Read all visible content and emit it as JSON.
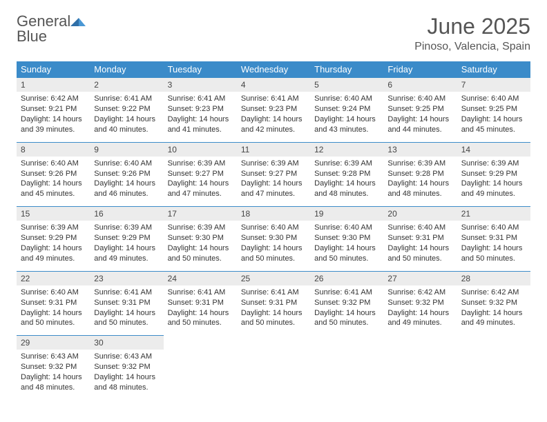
{
  "brand": {
    "line1": "General",
    "line2": "Blue"
  },
  "title": "June 2025",
  "location": "Pinoso, Valencia, Spain",
  "colors": {
    "header_bg": "#3b8bc9",
    "header_text": "#ffffff",
    "daynum_bg": "#ececec",
    "daynum_border": "#3b8bc9",
    "body_text": "#333333",
    "brand_gray": "#555555",
    "brand_blue": "#3b7fc4",
    "page_bg": "#ffffff"
  },
  "weekdays": [
    "Sunday",
    "Monday",
    "Tuesday",
    "Wednesday",
    "Thursday",
    "Friday",
    "Saturday"
  ],
  "days": [
    {
      "n": 1,
      "sr": "6:42 AM",
      "ss": "9:21 PM",
      "dl": "14 hours and 39 minutes."
    },
    {
      "n": 2,
      "sr": "6:41 AM",
      "ss": "9:22 PM",
      "dl": "14 hours and 40 minutes."
    },
    {
      "n": 3,
      "sr": "6:41 AM",
      "ss": "9:23 PM",
      "dl": "14 hours and 41 minutes."
    },
    {
      "n": 4,
      "sr": "6:41 AM",
      "ss": "9:23 PM",
      "dl": "14 hours and 42 minutes."
    },
    {
      "n": 5,
      "sr": "6:40 AM",
      "ss": "9:24 PM",
      "dl": "14 hours and 43 minutes."
    },
    {
      "n": 6,
      "sr": "6:40 AM",
      "ss": "9:25 PM",
      "dl": "14 hours and 44 minutes."
    },
    {
      "n": 7,
      "sr": "6:40 AM",
      "ss": "9:25 PM",
      "dl": "14 hours and 45 minutes."
    },
    {
      "n": 8,
      "sr": "6:40 AM",
      "ss": "9:26 PM",
      "dl": "14 hours and 45 minutes."
    },
    {
      "n": 9,
      "sr": "6:40 AM",
      "ss": "9:26 PM",
      "dl": "14 hours and 46 minutes."
    },
    {
      "n": 10,
      "sr": "6:39 AM",
      "ss": "9:27 PM",
      "dl": "14 hours and 47 minutes."
    },
    {
      "n": 11,
      "sr": "6:39 AM",
      "ss": "9:27 PM",
      "dl": "14 hours and 47 minutes."
    },
    {
      "n": 12,
      "sr": "6:39 AM",
      "ss": "9:28 PM",
      "dl": "14 hours and 48 minutes."
    },
    {
      "n": 13,
      "sr": "6:39 AM",
      "ss": "9:28 PM",
      "dl": "14 hours and 48 minutes."
    },
    {
      "n": 14,
      "sr": "6:39 AM",
      "ss": "9:29 PM",
      "dl": "14 hours and 49 minutes."
    },
    {
      "n": 15,
      "sr": "6:39 AM",
      "ss": "9:29 PM",
      "dl": "14 hours and 49 minutes."
    },
    {
      "n": 16,
      "sr": "6:39 AM",
      "ss": "9:29 PM",
      "dl": "14 hours and 49 minutes."
    },
    {
      "n": 17,
      "sr": "6:39 AM",
      "ss": "9:30 PM",
      "dl": "14 hours and 50 minutes."
    },
    {
      "n": 18,
      "sr": "6:40 AM",
      "ss": "9:30 PM",
      "dl": "14 hours and 50 minutes."
    },
    {
      "n": 19,
      "sr": "6:40 AM",
      "ss": "9:30 PM",
      "dl": "14 hours and 50 minutes."
    },
    {
      "n": 20,
      "sr": "6:40 AM",
      "ss": "9:31 PM",
      "dl": "14 hours and 50 minutes."
    },
    {
      "n": 21,
      "sr": "6:40 AM",
      "ss": "9:31 PM",
      "dl": "14 hours and 50 minutes."
    },
    {
      "n": 22,
      "sr": "6:40 AM",
      "ss": "9:31 PM",
      "dl": "14 hours and 50 minutes."
    },
    {
      "n": 23,
      "sr": "6:41 AM",
      "ss": "9:31 PM",
      "dl": "14 hours and 50 minutes."
    },
    {
      "n": 24,
      "sr": "6:41 AM",
      "ss": "9:31 PM",
      "dl": "14 hours and 50 minutes."
    },
    {
      "n": 25,
      "sr": "6:41 AM",
      "ss": "9:31 PM",
      "dl": "14 hours and 50 minutes."
    },
    {
      "n": 26,
      "sr": "6:41 AM",
      "ss": "9:32 PM",
      "dl": "14 hours and 50 minutes."
    },
    {
      "n": 27,
      "sr": "6:42 AM",
      "ss": "9:32 PM",
      "dl": "14 hours and 49 minutes."
    },
    {
      "n": 28,
      "sr": "6:42 AM",
      "ss": "9:32 PM",
      "dl": "14 hours and 49 minutes."
    },
    {
      "n": 29,
      "sr": "6:43 AM",
      "ss": "9:32 PM",
      "dl": "14 hours and 48 minutes."
    },
    {
      "n": 30,
      "sr": "6:43 AM",
      "ss": "9:32 PM",
      "dl": "14 hours and 48 minutes."
    }
  ],
  "labels": {
    "sunrise": "Sunrise:",
    "sunset": "Sunset:",
    "daylight": "Daylight:"
  },
  "layout": {
    "start_weekday": 0,
    "days_in_month": 30,
    "columns": 7
  }
}
